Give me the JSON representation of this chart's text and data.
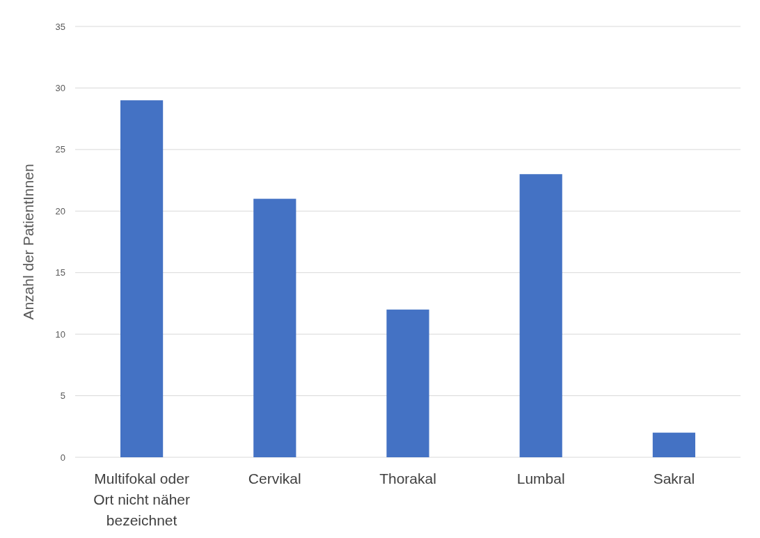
{
  "chart_data": {
    "type": "bar",
    "ylabel": "Anzahl der PatientInnen",
    "categories": [
      "Multifokal oder Ort nicht näher bezeichnet",
      "Cervikal",
      "Thorakal",
      "Lumbal",
      "Sakral"
    ],
    "values": [
      29,
      21,
      12,
      23,
      2
    ],
    "color": "#4472c4",
    "ylim": [
      0,
      35
    ],
    "yticks": [
      0,
      5,
      10,
      15,
      20,
      25,
      30,
      35
    ],
    "grid": "y"
  }
}
